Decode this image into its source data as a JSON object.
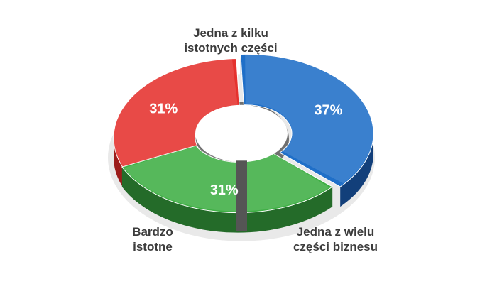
{
  "chart_data": {
    "type": "pie",
    "variant": "3d-donut",
    "categories": [
      [
        "Jedna z kilku",
        "istotnych części"
      ],
      [
        "Jedna z wielu",
        "części biznesu"
      ],
      [
        "Bardzo",
        "istotne"
      ]
    ],
    "values": [
      31,
      37,
      31
    ],
    "value_labels": [
      "31%",
      "37%",
      "31%"
    ],
    "colors": [
      "#e5322e",
      "#1f6fc8",
      "#3faf45"
    ],
    "dark_colors": [
      "#9c1c1a",
      "#123f7a",
      "#246b29"
    ]
  }
}
